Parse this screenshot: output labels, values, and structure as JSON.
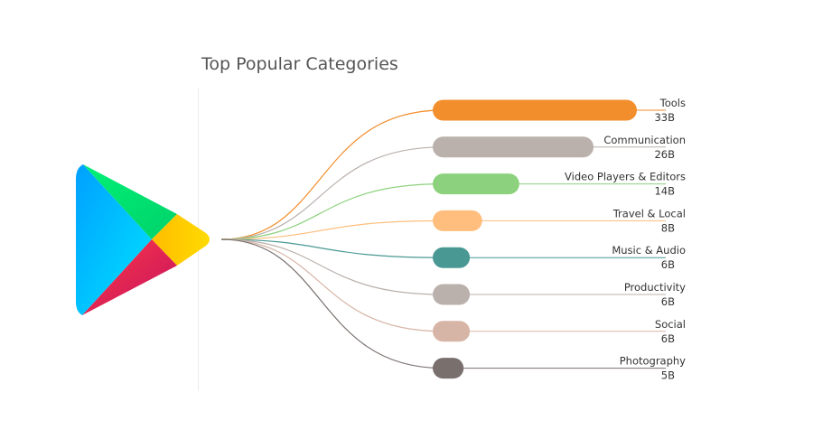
{
  "title": "Top Popular Categories",
  "chart_data": {
    "type": "bar",
    "title": "Top Popular Categories",
    "categories": [
      "Tools",
      "Communication",
      "Video Players & Editors",
      "Travel & Local",
      "Music & Audio",
      "Productivity",
      "Social",
      "Photography"
    ],
    "value_labels": [
      "33B",
      "26B",
      "14B",
      "8B",
      "6B",
      "6B",
      "6B",
      "5B"
    ],
    "values": [
      33,
      26,
      14,
      8,
      6,
      6,
      6,
      5
    ],
    "colors": [
      "#f28e2b",
      "#bab0ac",
      "#8cd17d",
      "#ffbe7d",
      "#499894",
      "#bab0ac",
      "#d7b5a6",
      "#79706e"
    ],
    "xlim": [
      0,
      33
    ],
    "grid": false,
    "legend": "none"
  },
  "logo": {
    "name": "Google Play",
    "colors": {
      "blue": "#00c3ff",
      "green": "#00e676",
      "yellow": "#ffd400",
      "red": "#ff3a44"
    }
  }
}
